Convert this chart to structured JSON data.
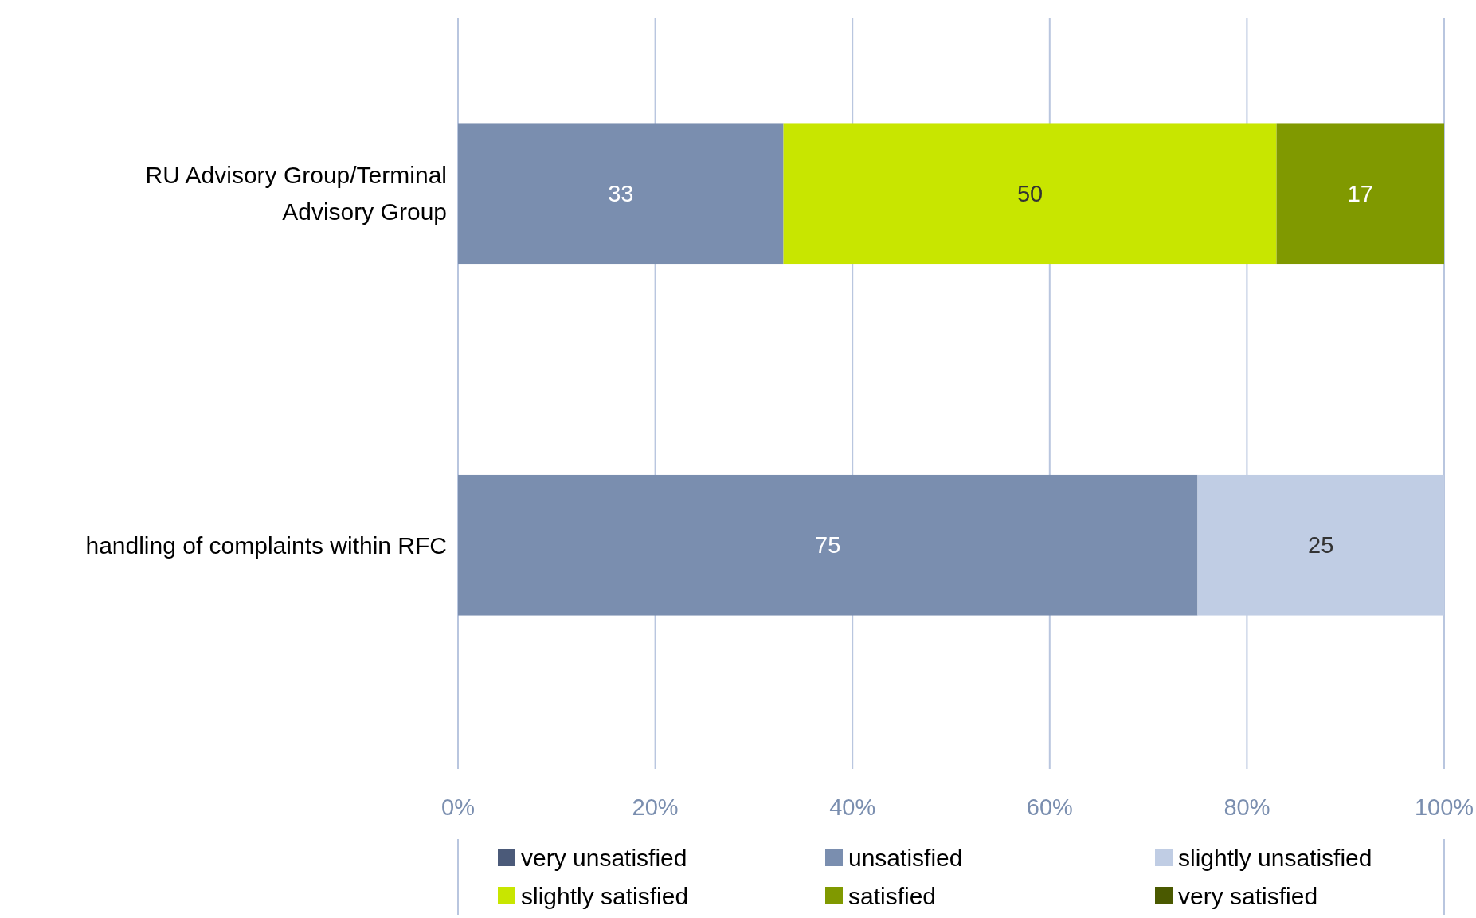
{
  "chart_data": {
    "type": "bar",
    "orientation": "horizontal",
    "stacked": true,
    "categories": [
      "RU Advisory Group/Terminal Advisory Group",
      "handling of complaints within RFC"
    ],
    "series": [
      {
        "name": "very unsatisfied",
        "color": "#4b5a79",
        "values": [
          null,
          null
        ]
      },
      {
        "name": "unsatisfied",
        "color": "#7a8eaf",
        "values": [
          33,
          75
        ]
      },
      {
        "name": "slightly unsatisfied",
        "color": "#c0cde4",
        "values": [
          null,
          25
        ]
      },
      {
        "name": "slightly satisfied",
        "color": "#c8e600",
        "values": [
          50,
          null
        ]
      },
      {
        "name": "satisfied",
        "color": "#809900",
        "values": [
          17,
          null
        ]
      },
      {
        "name": "very satisfied",
        "color": "#4a5900",
        "values": [
          null,
          null
        ]
      }
    ],
    "xlim": [
      0,
      100
    ],
    "xticks": [
      {
        "value": 0,
        "label": "0%"
      },
      {
        "value": 20,
        "label": "20%"
      },
      {
        "value": 40,
        "label": "40%"
      },
      {
        "value": 60,
        "label": "60%"
      },
      {
        "value": 80,
        "label": "80%"
      },
      {
        "value": 100,
        "label": "100%"
      }
    ],
    "grid": "x",
    "data_labels": true,
    "legend": "bottom"
  }
}
